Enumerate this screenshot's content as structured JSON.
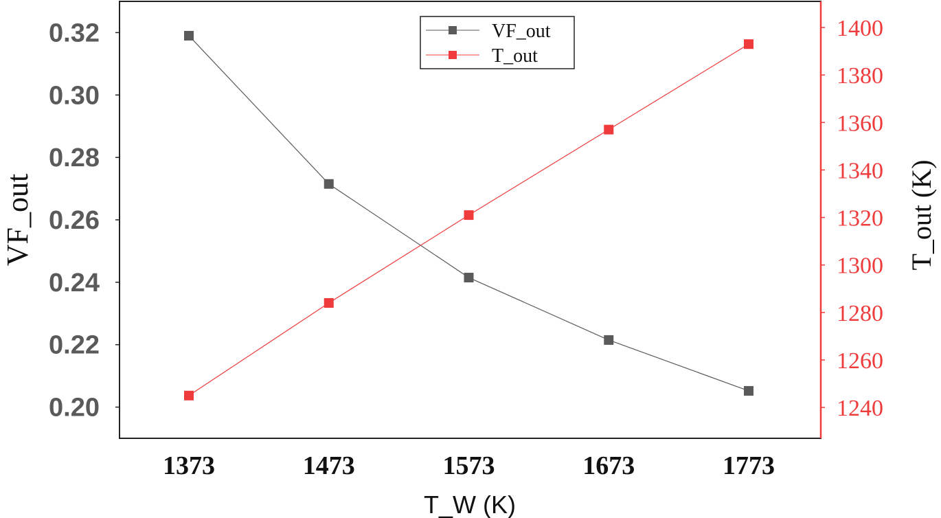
{
  "chart_data": {
    "type": "line",
    "x_label": "T_W (K)",
    "x": [
      1373,
      1473,
      1573,
      1673,
      1773
    ],
    "x_tick_labels": [
      "1373",
      "1473",
      "1573",
      "1673",
      "1773"
    ],
    "left_axis": {
      "label": "VF_out",
      "range": [
        0.19,
        0.33
      ],
      "ticks": [
        0.2,
        0.22,
        0.24,
        0.26,
        0.28,
        0.3,
        0.32
      ],
      "tick_labels": [
        "0.20",
        "0.22",
        "0.24",
        "0.26",
        "0.28",
        "0.30",
        "0.32"
      ],
      "color": "#5a5a5a"
    },
    "right_axis": {
      "label": "T_out (K)",
      "range": [
        1227,
        1411
      ],
      "ticks": [
        1240,
        1260,
        1280,
        1300,
        1320,
        1340,
        1360,
        1380,
        1400
      ],
      "tick_labels": [
        "1240",
        "1260",
        "1280",
        "1300",
        "1320",
        "1340",
        "1360",
        "1380",
        "1400"
      ],
      "color": "#ef3b3b"
    },
    "series": [
      {
        "name": "VF_out",
        "axis": "left",
        "color": "#5a5a5a",
        "marker": "square",
        "values": [
          0.319,
          0.2715,
          0.2415,
          0.2215,
          0.2052
        ]
      },
      {
        "name": "T_out",
        "axis": "right",
        "color": "#ef3b3b",
        "marker": "square",
        "values": [
          1245,
          1284,
          1321,
          1357,
          1393
        ]
      }
    ],
    "legend": {
      "position": "top-center"
    },
    "grid": false
  }
}
